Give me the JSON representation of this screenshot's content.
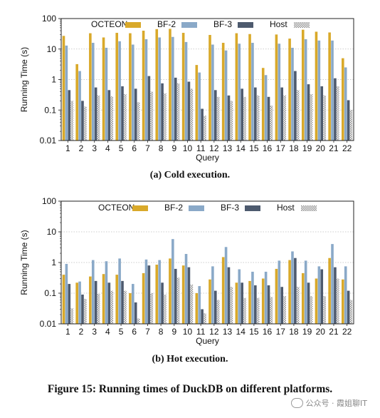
{
  "chart_data": [
    {
      "type": "bar",
      "caption": "(a) Cold execution.",
      "xlabel": "Query",
      "ylabel": "Running Time (s)",
      "yscale": "log",
      "ylim": [
        0.01,
        100
      ],
      "yticks": [
        "0.01",
        "0.1",
        "1",
        "10",
        "100"
      ],
      "grid": true,
      "legend_position": "top",
      "categories": [
        "1",
        "2",
        "3",
        "4",
        "5",
        "6",
        "7",
        "8",
        "9",
        "10",
        "11",
        "12",
        "13",
        "14",
        "15",
        "16",
        "17",
        "18",
        "19",
        "20",
        "21",
        "22"
      ],
      "series": [
        {
          "name": "OCTEON",
          "color": "#d9a92a",
          "pattern": "solid",
          "values": [
            27,
            3.2,
            33,
            24,
            34,
            33,
            40,
            45,
            46,
            34,
            3.0,
            29,
            16,
            33,
            31,
            2.4,
            30,
            22,
            43,
            37,
            35,
            5.0
          ]
        },
        {
          "name": "BF-2",
          "color": "#8aa9c8",
          "pattern": "solid",
          "values": [
            13,
            1.9,
            16,
            11,
            18,
            14,
            21,
            24,
            25,
            17,
            1.7,
            14,
            9,
            15,
            16,
            1.4,
            15,
            11,
            21,
            19,
            19,
            2.5
          ]
        },
        {
          "name": "BF-3",
          "color": "#4d5a6e",
          "pattern": "solid",
          "values": [
            0.45,
            0.2,
            0.55,
            0.45,
            0.6,
            0.5,
            1.3,
            0.75,
            1.15,
            0.85,
            0.11,
            0.45,
            0.3,
            0.5,
            0.55,
            0.27,
            0.55,
            1.9,
            0.7,
            0.6,
            1.1,
            0.21
          ]
        },
        {
          "name": "Host",
          "color": "#c9c9c9",
          "pattern": "hatch",
          "values": [
            0.2,
            0.13,
            0.3,
            0.28,
            0.33,
            0.18,
            0.4,
            0.35,
            0.75,
            0.5,
            0.065,
            0.27,
            0.2,
            0.27,
            0.3,
            0.14,
            0.3,
            0.45,
            0.33,
            0.3,
            0.6,
            0.1
          ]
        }
      ]
    },
    {
      "type": "bar",
      "caption": "(b) Hot execution.",
      "xlabel": "Query",
      "ylabel": "Running Time (s)",
      "yscale": "log",
      "ylim": [
        0.01,
        100
      ],
      "yticks": [
        "0.01",
        "0.1",
        "1",
        "10",
        "100"
      ],
      "grid": true,
      "legend_position": "top",
      "categories": [
        "1",
        "2",
        "3",
        "4",
        "5",
        "6",
        "7",
        "8",
        "9",
        "10",
        "11",
        "12",
        "13",
        "14",
        "15",
        "16",
        "17",
        "18",
        "19",
        "20",
        "21",
        "22"
      ],
      "series": [
        {
          "name": "OCTEON",
          "color": "#d9a92a",
          "pattern": "solid",
          "values": [
            0.4,
            0.22,
            0.35,
            0.42,
            0.4,
            0.1,
            0.45,
            0.85,
            1.35,
            0.8,
            0.1,
            0.28,
            1.5,
            0.22,
            0.25,
            0.3,
            0.62,
            1.2,
            0.45,
            0.3,
            1.4,
            0.28
          ]
        },
        {
          "name": "BF-2",
          "color": "#8aa9c8",
          "pattern": "solid",
          "values": [
            0.9,
            0.24,
            1.2,
            1.1,
            1.35,
            0.2,
            1.25,
            1.2,
            5.8,
            1.9,
            0.17,
            0.75,
            3.2,
            0.6,
            0.5,
            0.5,
            1.15,
            2.3,
            1.15,
            0.75,
            4.0,
            0.75
          ]
        },
        {
          "name": "BF-3",
          "color": "#4d5a6e",
          "pattern": "solid",
          "values": [
            0.2,
            0.09,
            0.25,
            0.22,
            0.25,
            0.05,
            0.8,
            0.22,
            0.62,
            0.7,
            0.03,
            0.12,
            0.7,
            0.22,
            0.18,
            0.18,
            0.16,
            1.4,
            0.22,
            0.6,
            0.7,
            0.12
          ]
        },
        {
          "name": "Host",
          "color": "#c9c9c9",
          "pattern": "hatch",
          "values": [
            0.032,
            0.065,
            0.095,
            0.12,
            0.12,
            0.015,
            0.1,
            0.09,
            0.32,
            0.19,
            0.022,
            0.06,
            0.16,
            0.07,
            0.07,
            0.075,
            0.08,
            0.16,
            0.08,
            0.08,
            0.3,
            0.06
          ]
        }
      ]
    }
  ],
  "figure_title": "Figure 15: Running times of DuckDB on different platforms.",
  "watermark": "公众号 · 霞姐聊IT",
  "watermark_icon": "wechat-icon"
}
